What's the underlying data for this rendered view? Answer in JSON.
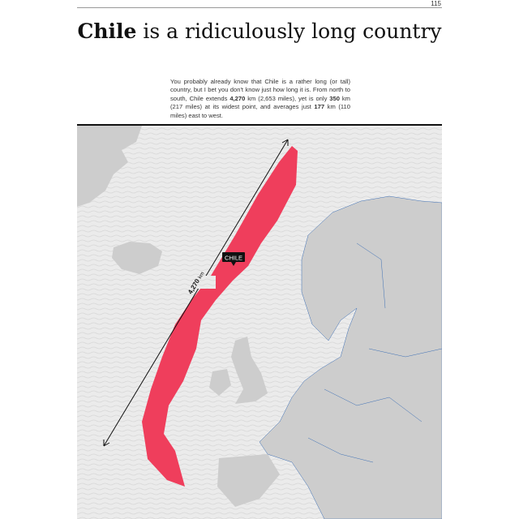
{
  "page_number": "115",
  "title": {
    "bold": "Chile",
    "rest": " is a ridiculously long country"
  },
  "intro": {
    "p1": "You probably already know that Chile is a rather long (or tall) country, but I bet you don't know just how long it is. From north to south, Chile extends ",
    "b1": "4,270",
    "p2": " km (2,653 miles), yet is only ",
    "b2": "350",
    "p3": " km (217 miles) at its widest point, and averages just ",
    "b3": "177",
    "p4": " km (110 miles) east to west."
  },
  "map": {
    "label": "CHILE",
    "length_value": "4,270",
    "length_unit": "km",
    "colors": {
      "chile": "#ef3e5c",
      "land": "#cdcdcd",
      "sea": "#ebebeb",
      "borders": "#3d6fb5"
    }
  }
}
